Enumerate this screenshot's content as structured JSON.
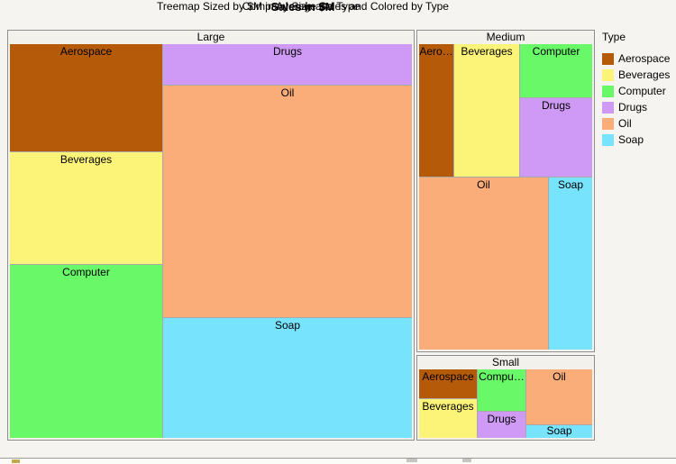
{
  "window": {
    "title": "Sales in $M",
    "subtitle": "Treemap Sized by $M in Average Sales and Colored by Type",
    "caption": "Company Size and Type"
  },
  "legend": {
    "title": "Type",
    "entries": [
      {
        "label": "Aerospace"
      },
      {
        "label": "Beverages"
      },
      {
        "label": "Computer"
      },
      {
        "label": "Drugs"
      },
      {
        "label": "Oil"
      },
      {
        "label": "Soap"
      }
    ]
  },
  "chart_data": {
    "type": "treemap",
    "title": "Sales in $M",
    "subtitle": "Treemap Sized by $M in Average Sales and Colored by Type",
    "group_axis_label": "Company Size and Type",
    "sized_by": "$M in Average Sales",
    "colored_by": "Type",
    "legend_title": "Type",
    "type_colors": {
      "Aerospace": "#B45A08",
      "Beverages": "#FCF478",
      "Computer": "#68F868",
      "Drugs": "#CE9AF5",
      "Oil": "#FBAD79",
      "Soap": "#77E3FC"
    },
    "groups": [
      {
        "name": "Large",
        "items": [
          {
            "type": "Aerospace",
            "label": "Aerospace",
            "relative_area_pct": 7.4
          },
          {
            "type": "Beverages",
            "label": "Beverages",
            "relative_area_pct": 7.7
          },
          {
            "type": "Computer",
            "label": "Computer",
            "relative_area_pct": 12.0
          },
          {
            "type": "Drugs",
            "label": "Drugs",
            "relative_area_pct": 4.5
          },
          {
            "type": "Oil",
            "label": "Oil",
            "relative_area_pct": 25.9
          },
          {
            "type": "Soap",
            "label": "Soap",
            "relative_area_pct": 13.5
          }
        ]
      },
      {
        "name": "Medium",
        "items": [
          {
            "type": "Aerospace",
            "label": "Aero…",
            "relative_area_pct": 2.0
          },
          {
            "type": "Beverages",
            "label": "Beverages",
            "relative_area_pct": 3.9
          },
          {
            "type": "Computer",
            "label": "Computer",
            "relative_area_pct": 1.8
          },
          {
            "type": "Drugs",
            "label": "Drugs",
            "relative_area_pct": 2.6
          },
          {
            "type": "Oil",
            "label": "Oil",
            "relative_area_pct": 10.0
          },
          {
            "type": "Soap",
            "label": "Soap",
            "relative_area_pct": 3.5
          }
        ]
      },
      {
        "name": "Small",
        "items": [
          {
            "type": "Aerospace",
            "label": "Aerospace",
            "relative_area_pct": 0.7
          },
          {
            "type": "Beverages",
            "label": "Beverages",
            "relative_area_pct": 1.0
          },
          {
            "type": "Computer",
            "label": "Compu…",
            "relative_area_pct": 0.9
          },
          {
            "type": "Drugs",
            "label": "Drugs",
            "relative_area_pct": 0.6
          },
          {
            "type": "Oil",
            "label": "Oil",
            "relative_area_pct": 1.6
          },
          {
            "type": "Soap",
            "label": "Soap",
            "relative_area_pct": 0.4
          }
        ]
      }
    ]
  }
}
